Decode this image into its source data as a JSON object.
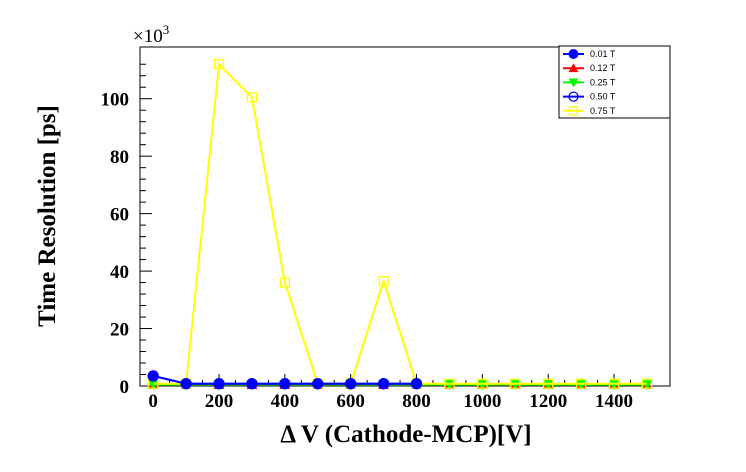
{
  "chart_data": {
    "type": "line",
    "xlabel": "Δ V (Cathode-MCP)[V]",
    "ylabel": "Time Resolution [ps]",
    "y_exponent_label": "×10",
    "y_exponent_power": "3",
    "xlim": [
      -40,
      1570
    ],
    "ylim": [
      0,
      118
    ],
    "x_ticks": [
      0,
      200,
      400,
      600,
      800,
      1000,
      1200,
      1400
    ],
    "y_ticks": [
      0,
      20,
      40,
      60,
      80,
      100
    ],
    "x_tick_labels": [
      "0",
      "200",
      "400",
      "600",
      "800",
      "1000",
      "1200",
      "1400"
    ],
    "y_tick_labels": [
      "0",
      "20",
      "40",
      "60",
      "80",
      "100"
    ],
    "legend_position": "top-right",
    "x": [
      0,
      100,
      200,
      300,
      400,
      500,
      600,
      700,
      800,
      900,
      1000,
      1100,
      1200,
      1300,
      1400,
      1500
    ],
    "series": [
      {
        "name": "0.01 T",
        "color": "#0000ff",
        "marker": "circle-filled",
        "x": [
          0,
          100,
          200,
          300,
          400,
          500,
          600,
          700,
          800
        ],
        "values": [
          3.5,
          0.8,
          0.8,
          0.8,
          0.8,
          0.8,
          0.8,
          0.8,
          0.8
        ]
      },
      {
        "name": "0.12 T",
        "color": "#ff0000",
        "marker": "triangle-up",
        "x": [
          0,
          100,
          200,
          300,
          400,
          500,
          600,
          700,
          800,
          900,
          1000,
          1100,
          1200,
          1300,
          1400,
          1500
        ],
        "values": [
          0.5,
          0.5,
          0.5,
          0.5,
          0.5,
          0.5,
          0.5,
          0.5,
          0.5,
          0.5,
          0.5,
          0.5,
          0.5,
          0.5,
          0.5,
          0.5
        ]
      },
      {
        "name": "0.25 T",
        "color": "#00ff00",
        "marker": "triangle-down",
        "x": [
          0,
          100,
          200,
          300,
          400,
          500,
          600,
          700,
          800,
          900,
          1000,
          1100,
          1200,
          1300,
          1400,
          1500
        ],
        "values": [
          0.5,
          0.5,
          0.5,
          0.5,
          0.5,
          0.5,
          0.5,
          0.5,
          0.5,
          0.5,
          0.5,
          0.5,
          0.5,
          0.5,
          0.5,
          0.5
        ]
      },
      {
        "name": "0.50 T",
        "color": "#0000ff",
        "marker": "circle-open",
        "x": [
          0,
          100,
          200,
          300,
          400,
          500,
          600,
          700,
          800
        ],
        "values": [
          3.5,
          0.8,
          0.8,
          0.8,
          0.8,
          0.8,
          0.8,
          0.8,
          0.8
        ]
      },
      {
        "name": "0.75 T",
        "color": "#ffff00",
        "marker": "square-open",
        "x": [
          0,
          100,
          200,
          300,
          400,
          500,
          600,
          700,
          800,
          900,
          1000,
          1100,
          1200,
          1300,
          1400,
          1500
        ],
        "values": [
          0.8,
          0.8,
          112,
          100.5,
          36,
          0.8,
          0.8,
          36.5,
          0.8,
          0.8,
          0.8,
          0.8,
          0.8,
          0.8,
          0.8,
          0.8
        ]
      }
    ]
  }
}
